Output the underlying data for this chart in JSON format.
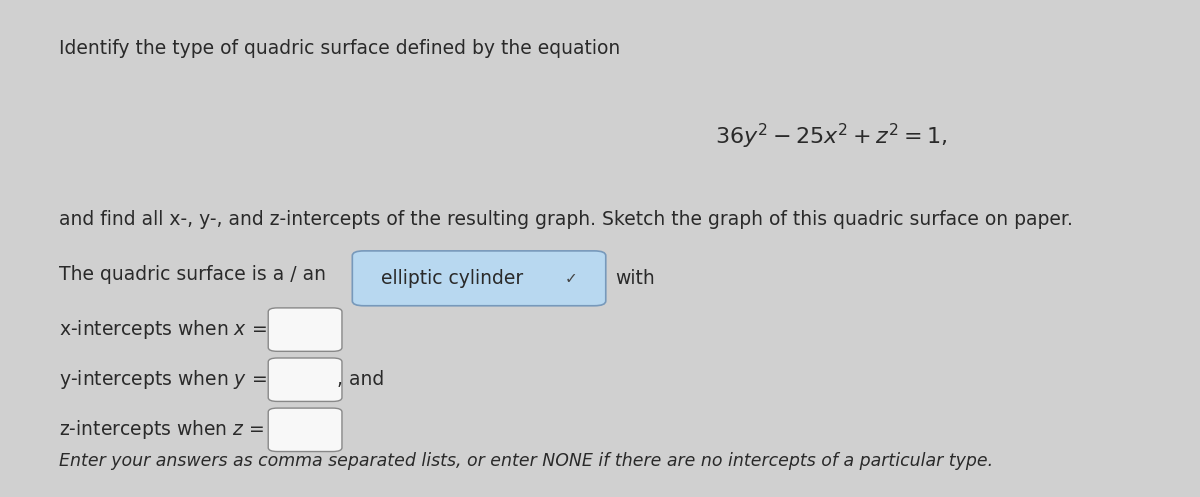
{
  "outer_bg": "#d0d0d0",
  "panel_color": "#e8eaec",
  "text_color": "#2a2a2a",
  "title_line1": "Identify the type of quadric surface defined by the equation",
  "equation": "$36y^2 - 25x^2 + z^2 = 1,$",
  "line2": "and find all x-, y-, and z-intercepts of the resulting graph. Sketch the graph of this quadric surface on paper.",
  "label_surface": "The quadric surface is a / an",
  "dropdown_text": "elliptic cylinder",
  "with_text": "with",
  "x_intercept_label": "x-intercepts when $x$ =",
  "y_intercept_label": "y-intercepts when $y$ =",
  "z_intercept_label": "z-intercepts when $z$ =",
  "and_text": ", and",
  "footer": "Enter your answers as comma separated lists, or enter NONE if there are no intercepts of a particular type.",
  "dropdown_bg": "#b8d8f0",
  "input_box_color": "#f8f8f8",
  "font_size_main": 13.5,
  "font_size_eq": 16,
  "font_size_footer": 12.5
}
